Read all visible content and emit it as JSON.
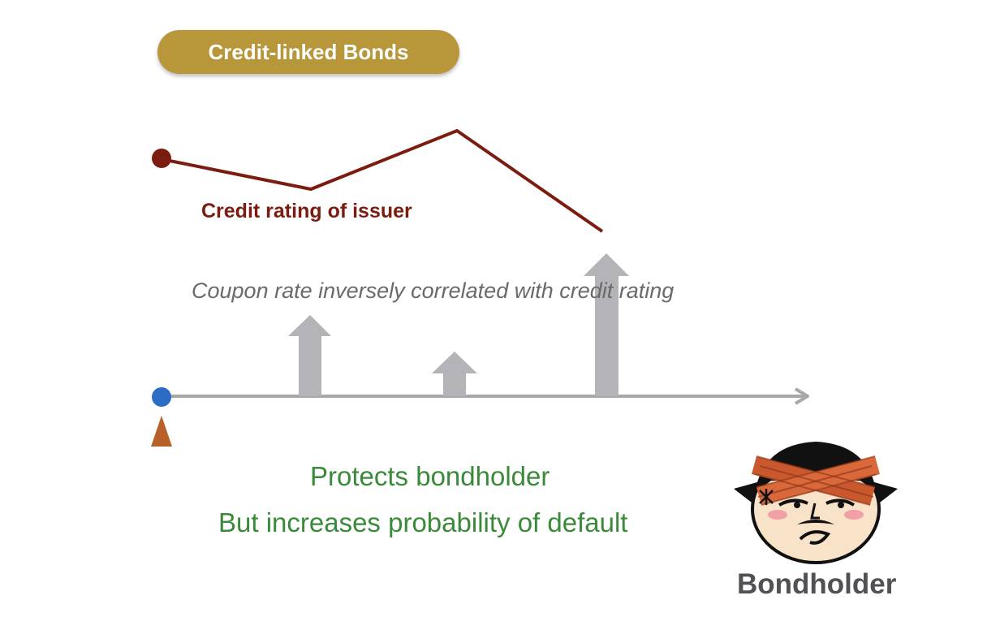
{
  "title_badge": "Credit-linked Bonds",
  "rating_label": "Credit rating of issuer",
  "coupon_note": "Coupon rate inversely correlated with credit rating",
  "benefit_lines": [
    "Protects bondholder",
    "But increases probability of default"
  ],
  "bondholder_label": "Bondholder",
  "colors": {
    "badge": "#b8963a",
    "rating_line": "#7b1c10",
    "timeline": "#a8a8a8",
    "coupon_arrows": "#b4b4b8",
    "start_point": "#2d6cc4",
    "issuer_marker": "#b8602a",
    "benefit_text": "#3a8a3a"
  },
  "icons": [
    "start-point-icon",
    "issuer-marker-icon",
    "bondholder-face-icon"
  ]
}
